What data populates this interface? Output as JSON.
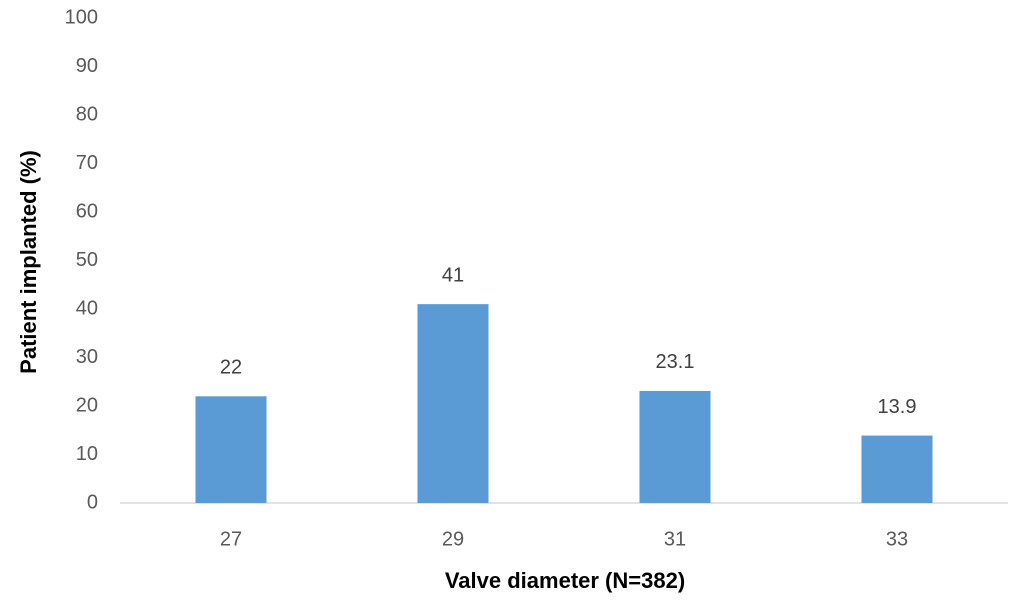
{
  "chart_data": {
    "type": "bar",
    "x_label": "Valve diameter (N=382)",
    "y_label": "Patient implanted (%)",
    "categories": [
      "27",
      "29",
      "31",
      "33"
    ],
    "values": [
      22,
      41,
      23.1,
      13.9
    ],
    "color": "#5b9bd5",
    "ylim": [
      0,
      100
    ],
    "yticks": [
      0,
      10,
      20,
      30,
      40,
      50,
      60,
      70,
      80,
      90,
      100
    ],
    "grid": false
  }
}
